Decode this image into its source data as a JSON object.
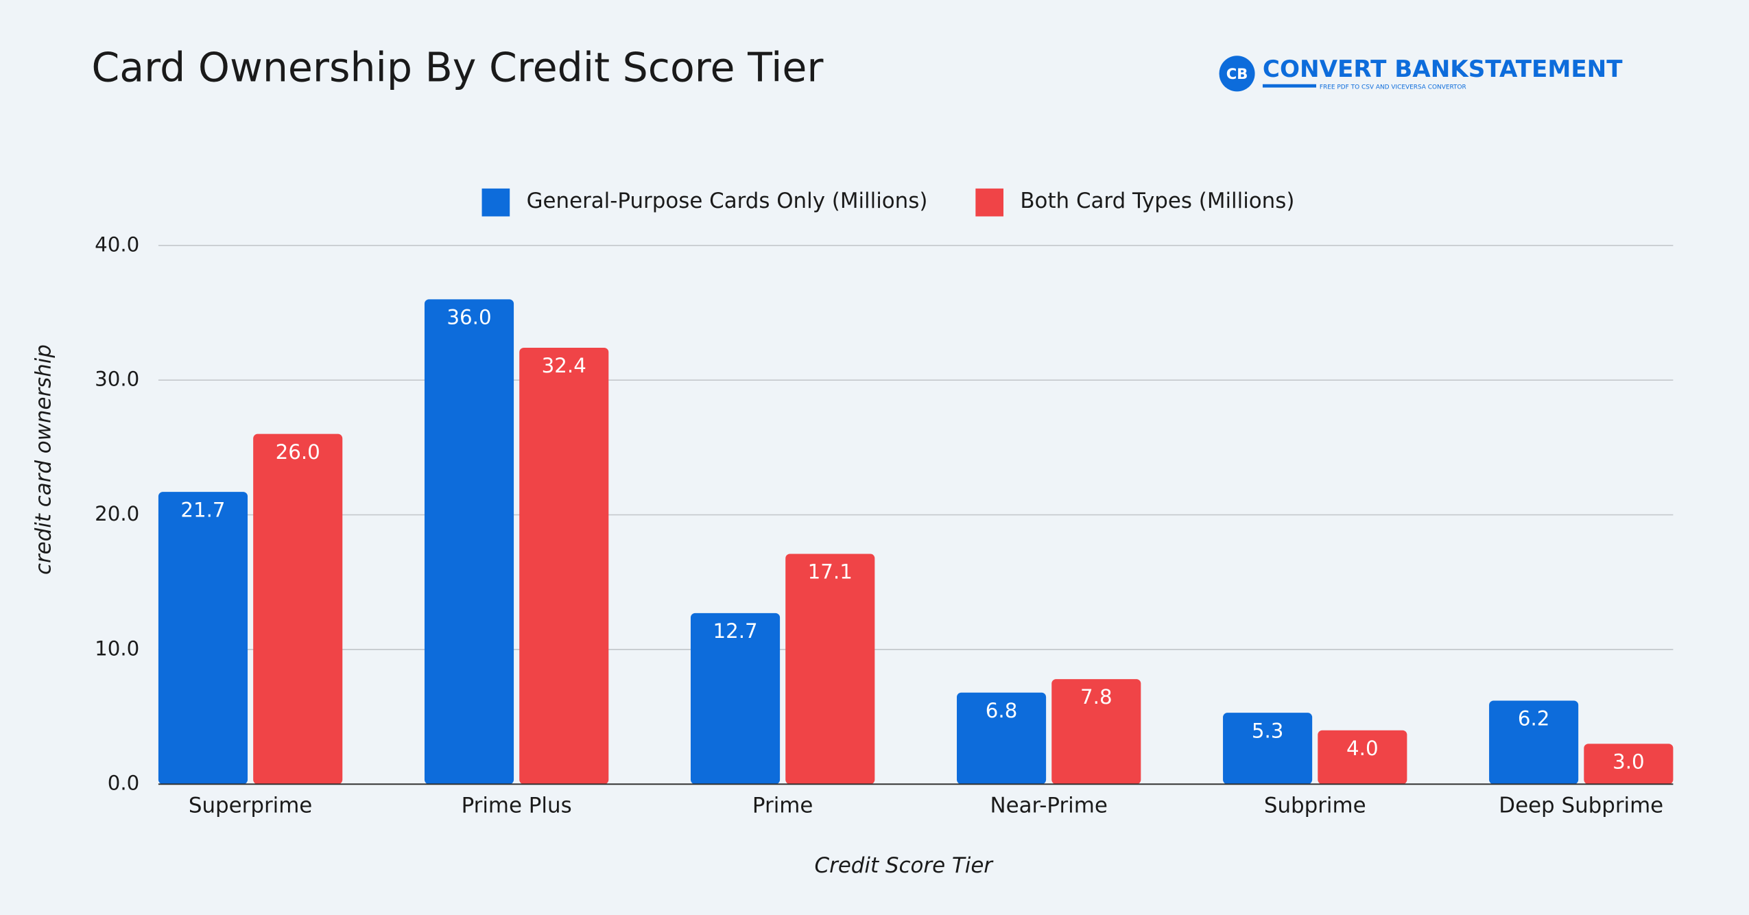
{
  "chart_data": {
    "type": "bar",
    "title": "Card Ownership By Credit Score Tier",
    "x_label": "Credit Score Tier",
    "y_label": "credit card ownership",
    "categories": [
      "Superprime",
      "Prime Plus",
      "Prime",
      "Near-Prime",
      "Subprime",
      "Deep Subprime"
    ],
    "series": [
      {
        "name": "General-Purpose Cards Only (Millions)",
        "color": "#0d6cdb",
        "values": [
          21.7,
          36.0,
          12.7,
          6.8,
          5.3,
          6.2
        ],
        "value_labels": [
          "21.7",
          "36.0",
          "12.7",
          "6.8",
          "5.3",
          "6.2"
        ]
      },
      {
        "name": "Both Card Types (Millions)",
        "color": "#f04447",
        "values": [
          26.0,
          32.4,
          17.1,
          7.8,
          4.0,
          3.0
        ],
        "value_labels": [
          "26.0",
          "32.4",
          "17.1",
          "7.8",
          "4.0",
          "3.0"
        ]
      }
    ],
    "ylim": [
      0,
      40
    ],
    "yticks": [
      {
        "value": 0,
        "label": "0.0"
      },
      {
        "value": 10,
        "label": "10.0"
      },
      {
        "value": 20,
        "label": "20.0"
      },
      {
        "value": 30,
        "label": "30.0"
      },
      {
        "value": 40,
        "label": "40.0"
      }
    ],
    "grid": true,
    "legend": "top"
  },
  "logo": {
    "badge": "CB",
    "name": "CONVERT BANKSTATEMENT",
    "tagline": "FREE PDF TO CSV AND VICEVERSA CONVERTOR"
  }
}
